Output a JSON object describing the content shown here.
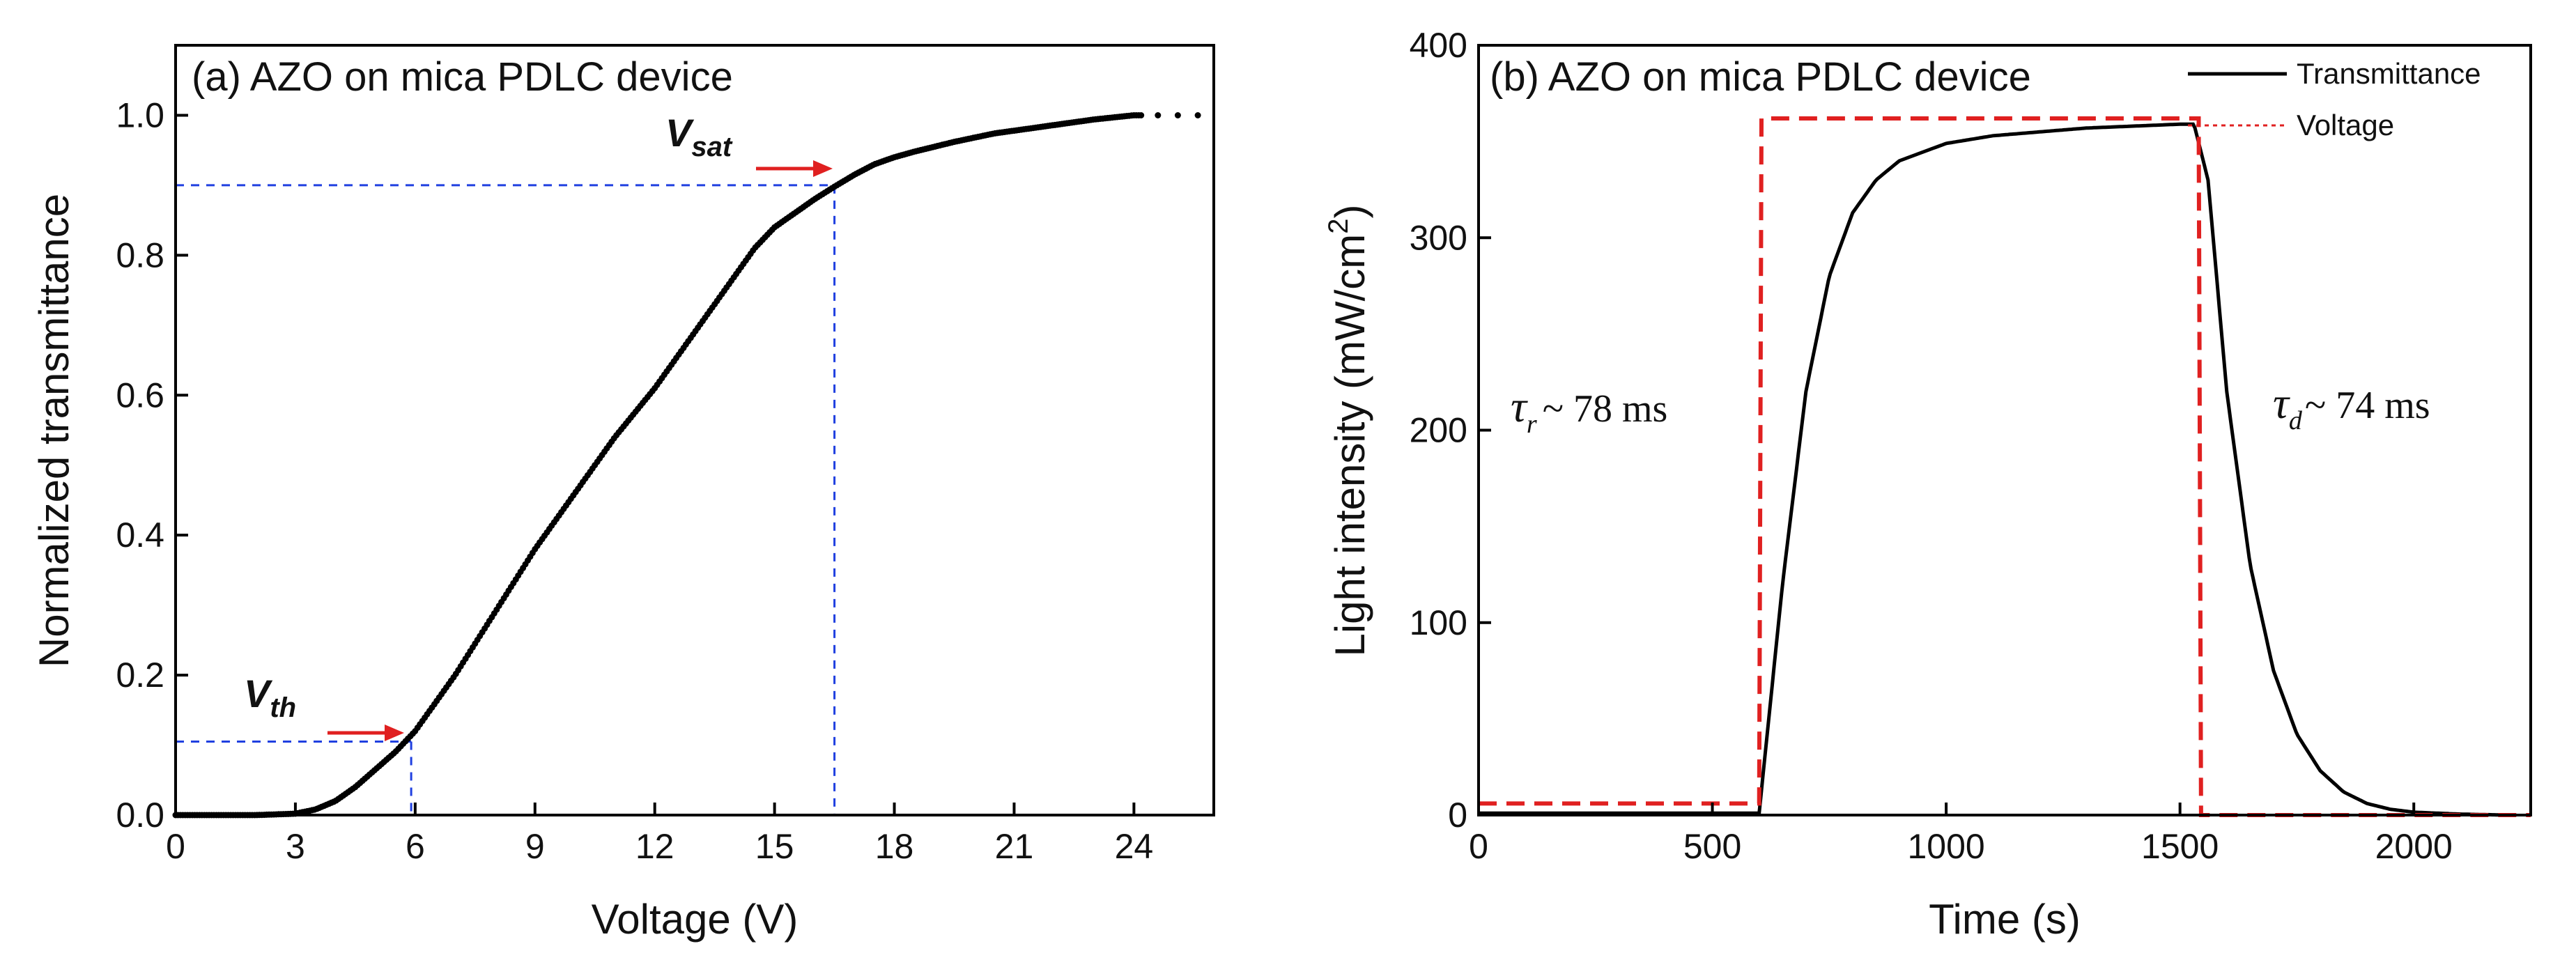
{
  "chart_data": [
    {
      "type": "scatter",
      "title": "(a) AZO on mica PDLC device",
      "xlabel": "Voltage (V)",
      "ylabel": "Normalized  transmittance",
      "xlim": [
        0,
        26
      ],
      "ylim": [
        0,
        1.1
      ],
      "xticks": [
        "0",
        "3",
        "6",
        "9",
        "12",
        "15",
        "18",
        "21",
        "24"
      ],
      "yticks": [
        "0.0",
        "0.2",
        "0.4",
        "0.6",
        "0.8",
        "1.0"
      ],
      "series": [
        {
          "name": "Normalized transmittance",
          "color": "#000000",
          "x": [
            0,
            1,
            2,
            3,
            3.5,
            4,
            4.5,
            5,
            5.5,
            6,
            6.5,
            7,
            7.5,
            8,
            8.5,
            9,
            9.5,
            10,
            10.5,
            11,
            11.5,
            12,
            12.5,
            13,
            13.5,
            14,
            14.5,
            15,
            15.5,
            16,
            16.5,
            17,
            17.5,
            18,
            18.5,
            19,
            19.5,
            20,
            20.5,
            21,
            21.5,
            22,
            22.5,
            23,
            23.5,
            24,
            24.5,
            25,
            25.5
          ],
          "y": [
            0.0,
            0.0,
            0.0,
            0.002,
            0.008,
            0.02,
            0.04,
            0.065,
            0.09,
            0.12,
            0.16,
            0.2,
            0.245,
            0.29,
            0.335,
            0.38,
            0.42,
            0.46,
            0.5,
            0.54,
            0.575,
            0.61,
            0.65,
            0.69,
            0.73,
            0.77,
            0.81,
            0.84,
            0.86,
            0.88,
            0.898,
            0.915,
            0.93,
            0.94,
            0.948,
            0.955,
            0.962,
            0.968,
            0.974,
            0.978,
            0.982,
            0.986,
            0.99,
            0.994,
            0.997,
            1.0,
            1.0,
            1.0,
            1.0
          ]
        }
      ],
      "guides": [
        {
          "label": "V",
          "subscript": "th",
          "x": 5.9,
          "y": 0.105,
          "color": "#2040e0"
        },
        {
          "label": "V",
          "subscript": "sat",
          "x": 16.5,
          "y": 0.9,
          "color": "#2040e0"
        }
      ],
      "arrow_color": "#e02020"
    },
    {
      "type": "line",
      "title": "(b) AZO on mica PDLC device",
      "xlabel": "Time (s)",
      "ylabel_main": "Light intensity (mW/cm",
      "ylabel_sup": "2",
      "ylabel_end": ")",
      "xlim": [
        0,
        2250
      ],
      "ylim": [
        0,
        400
      ],
      "xticks": [
        "0",
        "500",
        "1000",
        "1500",
        "2000"
      ],
      "yticks": [
        "0",
        "100",
        "200",
        "300",
        "400"
      ],
      "legend": {
        "position": "top-right",
        "entries": [
          "Transmittance",
          "Voltage"
        ]
      },
      "series": [
        {
          "name": "Transmittance",
          "color": "#000000",
          "x": [
            0,
            600,
            650,
            700,
            750,
            800,
            850,
            900,
            1000,
            1100,
            1200,
            1300,
            1400,
            1500,
            1530,
            1560,
            1600,
            1650,
            1700,
            1750,
            1800,
            1850,
            1900,
            1950,
            2000,
            2100,
            2200
          ],
          "y": [
            1,
            1,
            120,
            220,
            280,
            313,
            330,
            340,
            349,
            353,
            355,
            357,
            358,
            359,
            359,
            330,
            220,
            130,
            75,
            42,
            23,
            12,
            6,
            3,
            1.5,
            0.5,
            0
          ]
        },
        {
          "name": "Voltage",
          "color": "#e02020",
          "x": [
            0,
            600,
            605,
            1540,
            1545,
            2250
          ],
          "y": [
            6,
            6,
            362,
            362,
            0,
            0
          ]
        }
      ],
      "annotations": [
        {
          "symbol": "τ",
          "subscript": "r",
          "text": "~ 78 ms"
        },
        {
          "symbol": "τ",
          "subscript": "d",
          "text": "~ 74 ms"
        }
      ]
    }
  ]
}
